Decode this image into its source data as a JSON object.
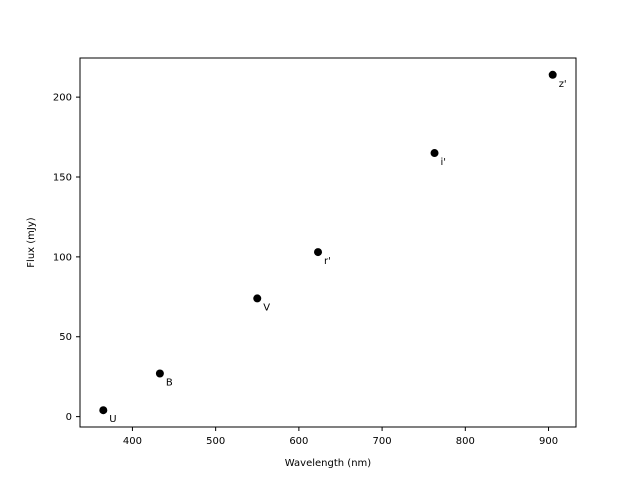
{
  "chart_data": {
    "type": "scatter",
    "title": "",
    "xlabel": "Wavelength (nm)",
    "ylabel": "Flux (mJy)",
    "xlim": [
      337,
      933
    ],
    "ylim": [
      -6.5,
      224.5
    ],
    "xticks": [
      400,
      500,
      600,
      700,
      800,
      900
    ],
    "yticks": [
      0,
      50,
      100,
      150,
      200
    ],
    "grid": false,
    "legend": false,
    "marker_color": "#000000",
    "points": [
      {
        "label": "U",
        "x": 365,
        "y": 4
      },
      {
        "label": "B",
        "x": 433,
        "y": 27
      },
      {
        "label": "V",
        "x": 550,
        "y": 74
      },
      {
        "label": "r'",
        "x": 623,
        "y": 103
      },
      {
        "label": "i'",
        "x": 763,
        "y": 165
      },
      {
        "label": "z'",
        "x": 905,
        "y": 214
      }
    ]
  }
}
